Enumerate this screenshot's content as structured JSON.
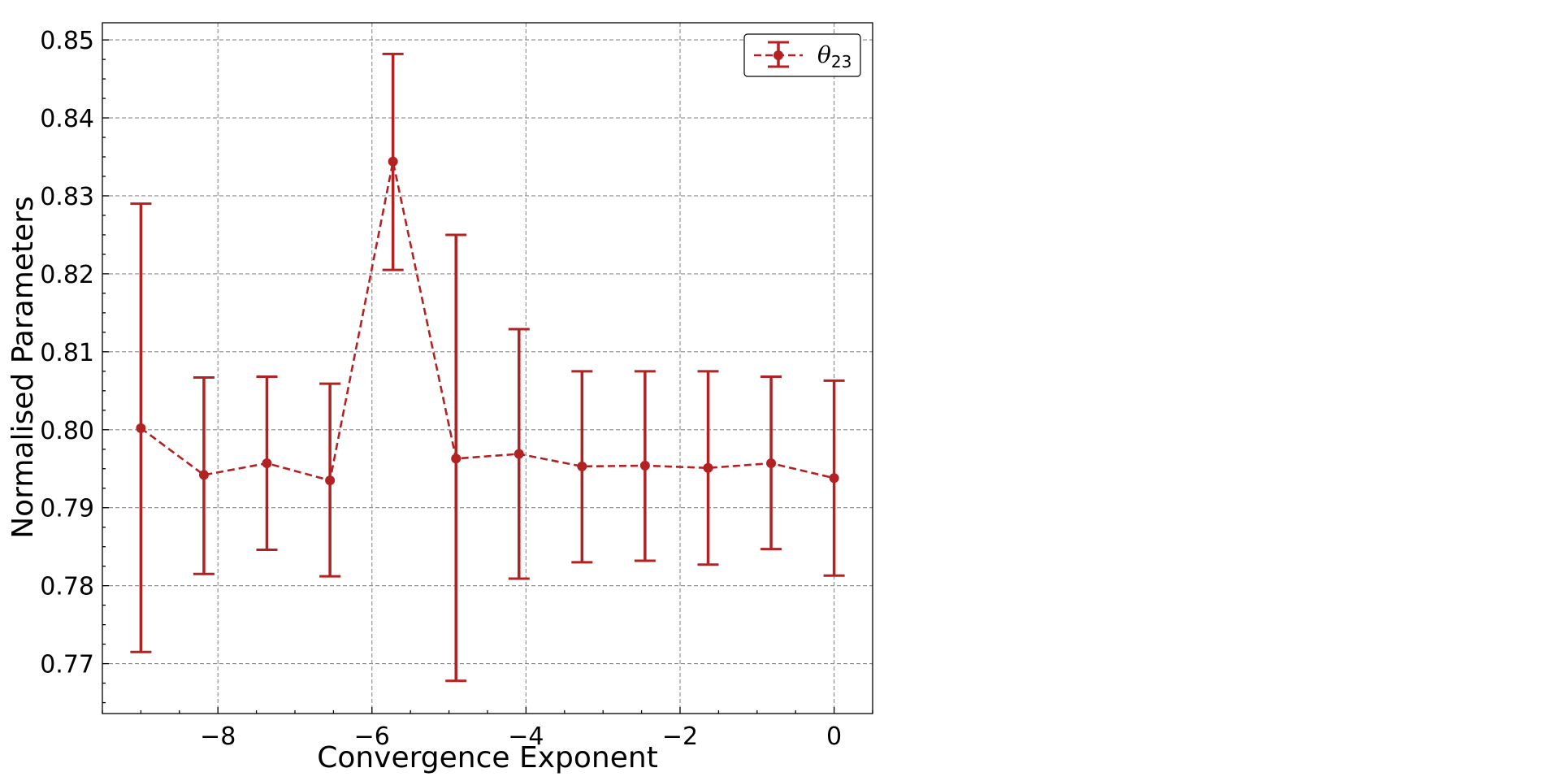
{
  "chart_data": {
    "type": "line",
    "xlabel": "Convergence Exponent",
    "ylabel": "Normalised Parameters",
    "xlim": [
      -9.5,
      0.5
    ],
    "ylim": [
      0.7636,
      0.8522
    ],
    "x_ticks": [
      -8,
      -6,
      -4,
      -2,
      0
    ],
    "x_tick_labels": [
      "−8",
      "−6",
      "−4",
      "−2",
      "0"
    ],
    "y_ticks": [
      0.77,
      0.78,
      0.79,
      0.8,
      0.81,
      0.82,
      0.83,
      0.84,
      0.85
    ],
    "y_tick_labels": [
      "0.77",
      "0.78",
      "0.79",
      "0.80",
      "0.81",
      "0.82",
      "0.83",
      "0.84",
      "0.85"
    ],
    "grid": true,
    "legend_position": "top-right",
    "series": [
      {
        "name": "θ",
        "name_subscript": "23",
        "color": "#b22222",
        "linestyle": "dashed",
        "marker": "circle",
        "points": [
          {
            "x": -9.0,
            "y": 0.8002,
            "yerr_low": 0.7715,
            "yerr_high": 0.829
          },
          {
            "x": -8.182,
            "y": 0.7942,
            "yerr_low": 0.7815,
            "yerr_high": 0.8067
          },
          {
            "x": -7.364,
            "y": 0.7957,
            "yerr_low": 0.7846,
            "yerr_high": 0.8068
          },
          {
            "x": -6.545,
            "y": 0.7935,
            "yerr_low": 0.7812,
            "yerr_high": 0.8059
          },
          {
            "x": -5.727,
            "y": 0.8344,
            "yerr_low": 0.8205,
            "yerr_high": 0.8482
          },
          {
            "x": -4.909,
            "y": 0.7963,
            "yerr_low": 0.7678,
            "yerr_high": 0.825
          },
          {
            "x": -4.091,
            "y": 0.7969,
            "yerr_low": 0.7809,
            "yerr_high": 0.8129
          },
          {
            "x": -3.273,
            "y": 0.7953,
            "yerr_low": 0.783,
            "yerr_high": 0.8075
          },
          {
            "x": -2.455,
            "y": 0.7954,
            "yerr_low": 0.7832,
            "yerr_high": 0.8075
          },
          {
            "x": -1.636,
            "y": 0.7951,
            "yerr_low": 0.7827,
            "yerr_high": 0.8075
          },
          {
            "x": -0.818,
            "y": 0.7957,
            "yerr_low": 0.7847,
            "yerr_high": 0.8068
          },
          {
            "x": 0.0,
            "y": 0.7938,
            "yerr_low": 0.7813,
            "yerr_high": 0.8063
          }
        ]
      }
    ]
  }
}
